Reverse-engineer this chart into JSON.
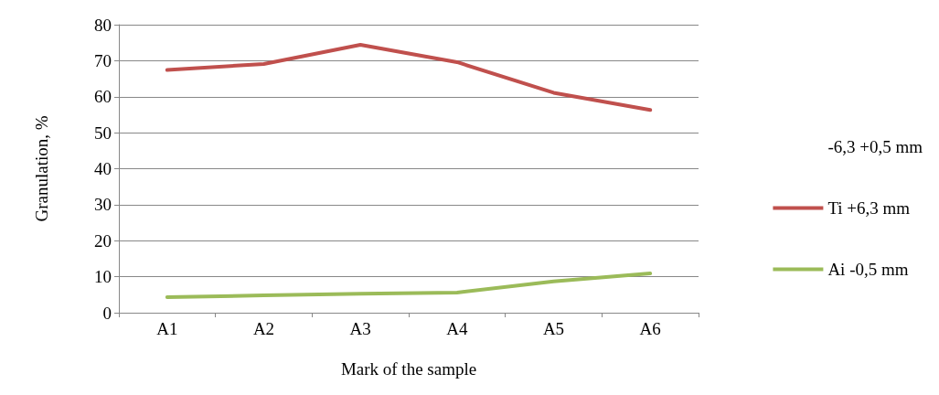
{
  "chart_data": {
    "type": "line",
    "xlabel": "Mark of the sample",
    "ylabel": "Granulation, %",
    "categories": [
      "A1",
      "A2",
      "A3",
      "A4",
      "A5",
      "A6"
    ],
    "series": [
      {
        "name": "-6,3 +0,5 mm",
        "values": [
          null,
          null,
          null,
          null,
          null,
          null
        ]
      },
      {
        "name": "Ti +6,3 mm",
        "color": "#c0504d",
        "values": [
          67.4,
          69.1,
          74.4,
          69.6,
          61.1,
          56.3
        ]
      },
      {
        "name": "Ai -0,5 mm",
        "color": "#9bbb59",
        "values": [
          4.3,
          4.8,
          5.3,
          5.6,
          8.7,
          10.9
        ]
      }
    ],
    "ylim": [
      0,
      80
    ],
    "yticks": [
      0,
      10,
      20,
      30,
      40,
      50,
      60,
      70,
      80
    ],
    "grid": "y",
    "legend": "right",
    "marker": "none",
    "line_style": "solid"
  }
}
